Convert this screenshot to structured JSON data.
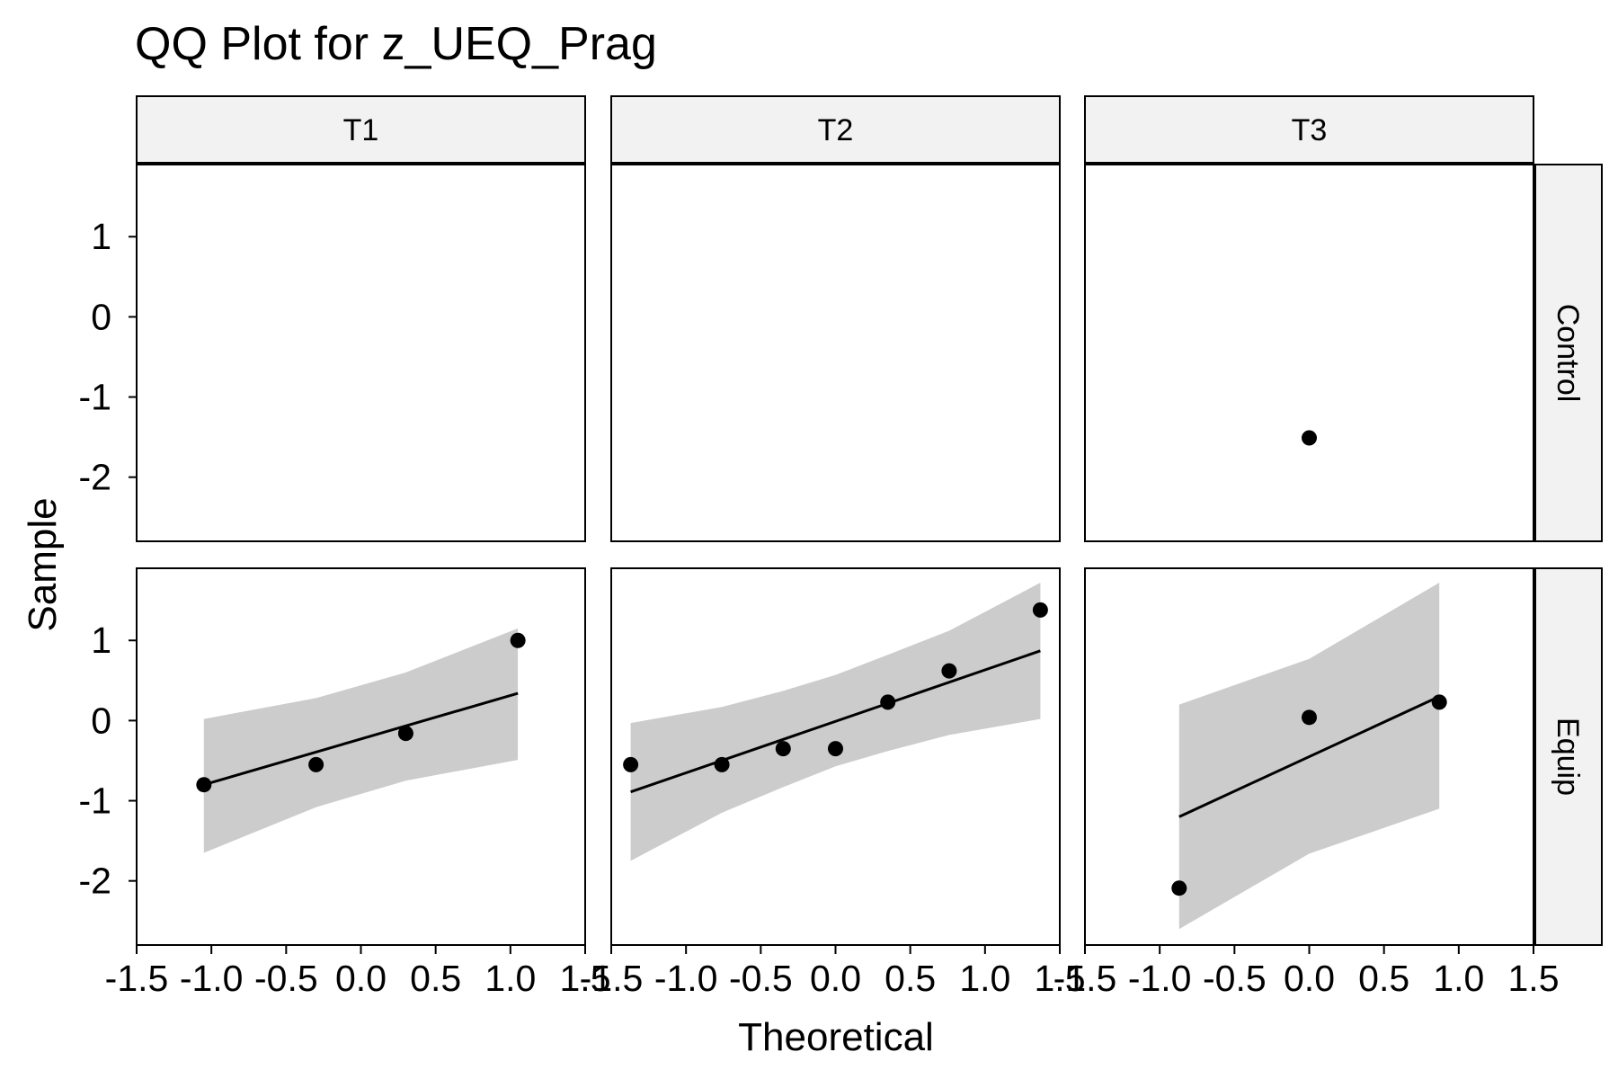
{
  "chart_data": {
    "type": "scatter",
    "title": "QQ Plot for z_UEQ_Prag",
    "xlabel": "Theoretical",
    "ylabel": "Sample",
    "columns": [
      "T1",
      "T2",
      "T3"
    ],
    "rows": [
      "Control",
      "Equip"
    ],
    "xlim": [
      -1.5,
      1.5
    ],
    "ylim": [
      -2.8,
      1.9
    ],
    "x_ticks": [
      -1.5,
      -1.0,
      -0.5,
      0.0,
      0.5,
      1.0,
      1.5
    ],
    "x_tick_labels": [
      "-1.5",
      "-1.0",
      "-0.5",
      "0.0",
      "0.5",
      "1.0",
      "1.5"
    ],
    "y_ticks": [
      1,
      0,
      -1,
      -2
    ],
    "y_tick_labels": [
      "1",
      "0",
      "-1",
      "-2"
    ],
    "grid": false,
    "colors": {
      "points": "#000000",
      "line": "#000000",
      "band": "#cccccc",
      "strip_fill": "#f2f2f2",
      "panel_border": "#000000"
    },
    "panels": [
      {
        "row": "Control",
        "col": "T1",
        "points": []
      },
      {
        "row": "Control",
        "col": "T2",
        "points": []
      },
      {
        "row": "Control",
        "col": "T3",
        "points": [
          [
            0.0,
            -1.51
          ]
        ]
      },
      {
        "row": "Equip",
        "col": "T1",
        "points": [
          [
            -1.05,
            -0.8
          ],
          [
            -0.3,
            -0.55
          ],
          [
            0.3,
            -0.16
          ],
          [
            1.05,
            1.0
          ]
        ],
        "line": [
          [
            -1.05,
            -0.8
          ],
          [
            1.05,
            0.34
          ]
        ],
        "band": {
          "x": [
            -1.05,
            -0.3,
            0.3,
            1.05
          ],
          "upper": [
            0.02,
            0.28,
            0.6,
            1.15
          ],
          "lower": [
            -1.65,
            -1.08,
            -0.75,
            -0.49
          ]
        }
      },
      {
        "row": "Equip",
        "col": "T2",
        "points": [
          [
            -1.37,
            -0.55
          ],
          [
            -0.76,
            -0.55
          ],
          [
            -0.35,
            -0.35
          ],
          [
            0.0,
            -0.35
          ],
          [
            0.35,
            0.23
          ],
          [
            0.76,
            0.62
          ],
          [
            1.37,
            1.38
          ]
        ],
        "line": [
          [
            -1.37,
            -0.89
          ],
          [
            1.37,
            0.87
          ]
        ],
        "band": {
          "x": [
            -1.37,
            -0.76,
            -0.35,
            0.0,
            0.35,
            0.76,
            1.37
          ],
          "upper": [
            -0.03,
            0.17,
            0.37,
            0.57,
            0.82,
            1.12,
            1.72
          ],
          "lower": [
            -1.75,
            -1.15,
            -0.83,
            -0.57,
            -0.38,
            -0.18,
            0.02
          ]
        }
      },
      {
        "row": "Equip",
        "col": "T3",
        "points": [
          [
            -0.87,
            -2.09
          ],
          [
            0.0,
            0.04
          ],
          [
            0.87,
            0.23
          ]
        ],
        "line": [
          [
            -0.87,
            -1.2
          ],
          [
            0.87,
            0.3
          ]
        ],
        "band": {
          "x": [
            -0.87,
            0.0,
            0.87
          ],
          "upper": [
            0.2,
            0.77,
            1.72
          ],
          "lower": [
            -2.6,
            -1.66,
            -1.1
          ]
        }
      }
    ]
  }
}
